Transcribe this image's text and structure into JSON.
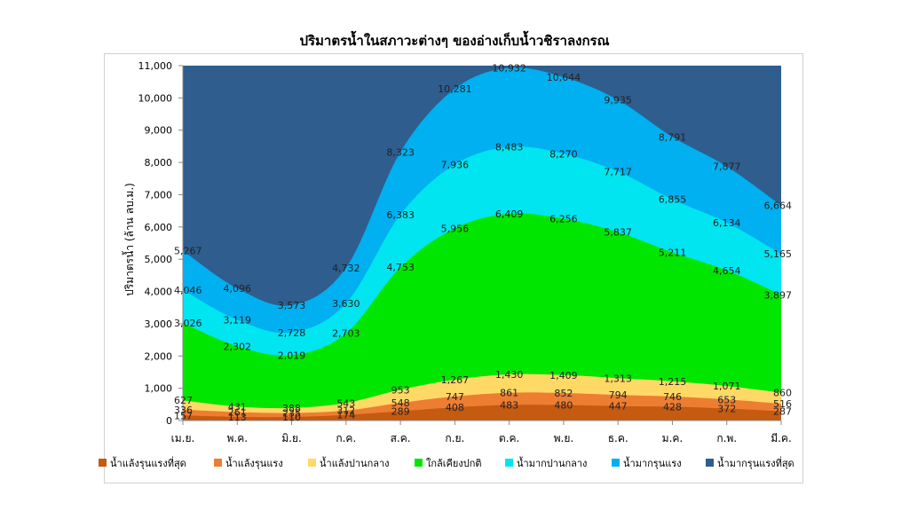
{
  "chart_data": {
    "type": "area",
    "stacked": true,
    "title": "ปริมาตรน้ำในสภาวะต่างๆ ของอ่างเก็บน้ำวชิราลงกรณ",
    "ylabel": "ปริมาตรน้ำ (ล้าน ลบ.ม.)",
    "xlabel": "",
    "ylim": [
      0,
      11000
    ],
    "yticks": [
      "0",
      "1,000",
      "2,000",
      "3,000",
      "4,000",
      "5,000",
      "6,000",
      "7,000",
      "8,000",
      "9,000",
      "10,000",
      "11,000"
    ],
    "categories": [
      "เม.ย.",
      "พ.ค.",
      "มิ.ย.",
      "ก.ค.",
      "ส.ค.",
      "ก.ย.",
      "ต.ค.",
      "พ.ย.",
      "ธ.ค.",
      "ม.ค.",
      "ก.พ.",
      "มี.ค."
    ],
    "legend_position": "bottom",
    "series": [
      {
        "name": "น้ำแล้งรุนแรงที่สุด",
        "color": "#c55a11",
        "values": [
          157,
          113,
          110,
          174,
          289,
          408,
          483,
          480,
          447,
          428,
          372,
          287
        ],
        "labels": [
          "157",
          "113",
          "110",
          "174",
          "289",
          "408",
          "483",
          "480",
          "447",
          "428",
          "372",
          "287"
        ]
      },
      {
        "name": "น้ำแล้งรุนแรง",
        "color": "#ed7d31",
        "values": [
          336,
          261,
          235,
          312,
          548,
          747,
          861,
          852,
          794,
          746,
          653,
          516
        ],
        "labels": [
          "336",
          "261",
          "235",
          "312",
          "548",
          "747",
          "861",
          "852",
          "794",
          "746",
          "653",
          "516"
        ]
      },
      {
        "name": "น้ำแล้งปานกลาง",
        "color": "#ffd966",
        "values": [
          627,
          431,
          388,
          543,
          953,
          1267,
          1430,
          1409,
          1313,
          1215,
          1071,
          860
        ],
        "labels": [
          "627",
          "431",
          "388",
          "543",
          "953",
          "1,267",
          "1,430",
          "1,409",
          "1,313",
          "1,215",
          "1,071",
          "860"
        ]
      },
      {
        "name": "ใกล้เคียงปกติ",
        "color": "#00e600",
        "values": [
          3026,
          2302,
          2019,
          2703,
          4753,
          5956,
          6409,
          6256,
          5837,
          5211,
          4654,
          3897
        ],
        "labels": [
          "3,026",
          "2,302",
          "2,019",
          "2,703",
          "4,753",
          "5,956",
          "6,409",
          "6,256",
          "5,837",
          "5,211",
          "4,654",
          "3,897"
        ]
      },
      {
        "name": "น้ำมากปานกลาง",
        "color": "#00e5f0",
        "values": [
          4046,
          3119,
          2728,
          3630,
          6383,
          7936,
          8483,
          8270,
          7717,
          6855,
          6134,
          5165
        ],
        "labels": [
          "4,046",
          "3,119",
          "2,728",
          "3,630",
          "6,383",
          "7,936",
          "8,483",
          "8,270",
          "7,717",
          "6,855",
          "6,134",
          "5,165"
        ]
      },
      {
        "name": "น้ำมากรุนแรง",
        "color": "#00b0f0",
        "values": [
          5267,
          4096,
          3573,
          4732,
          8323,
          10281,
          10932,
          10644,
          9935,
          8791,
          7877,
          6664
        ],
        "labels": [
          "5,267",
          "4,096",
          "3,573",
          "4,732",
          "8,323",
          "10,281",
          "10,932",
          "10,644",
          "9,935",
          "8,791",
          "7,877",
          "6,664"
        ]
      },
      {
        "name": "น้ำมากรุนแรงที่สุด",
        "color": "#2e5d8e",
        "values": [
          11000,
          11000,
          11000,
          11000,
          11000,
          11000,
          11000,
          11000,
          11000,
          11000,
          11000,
          11000
        ],
        "labels": []
      }
    ]
  }
}
